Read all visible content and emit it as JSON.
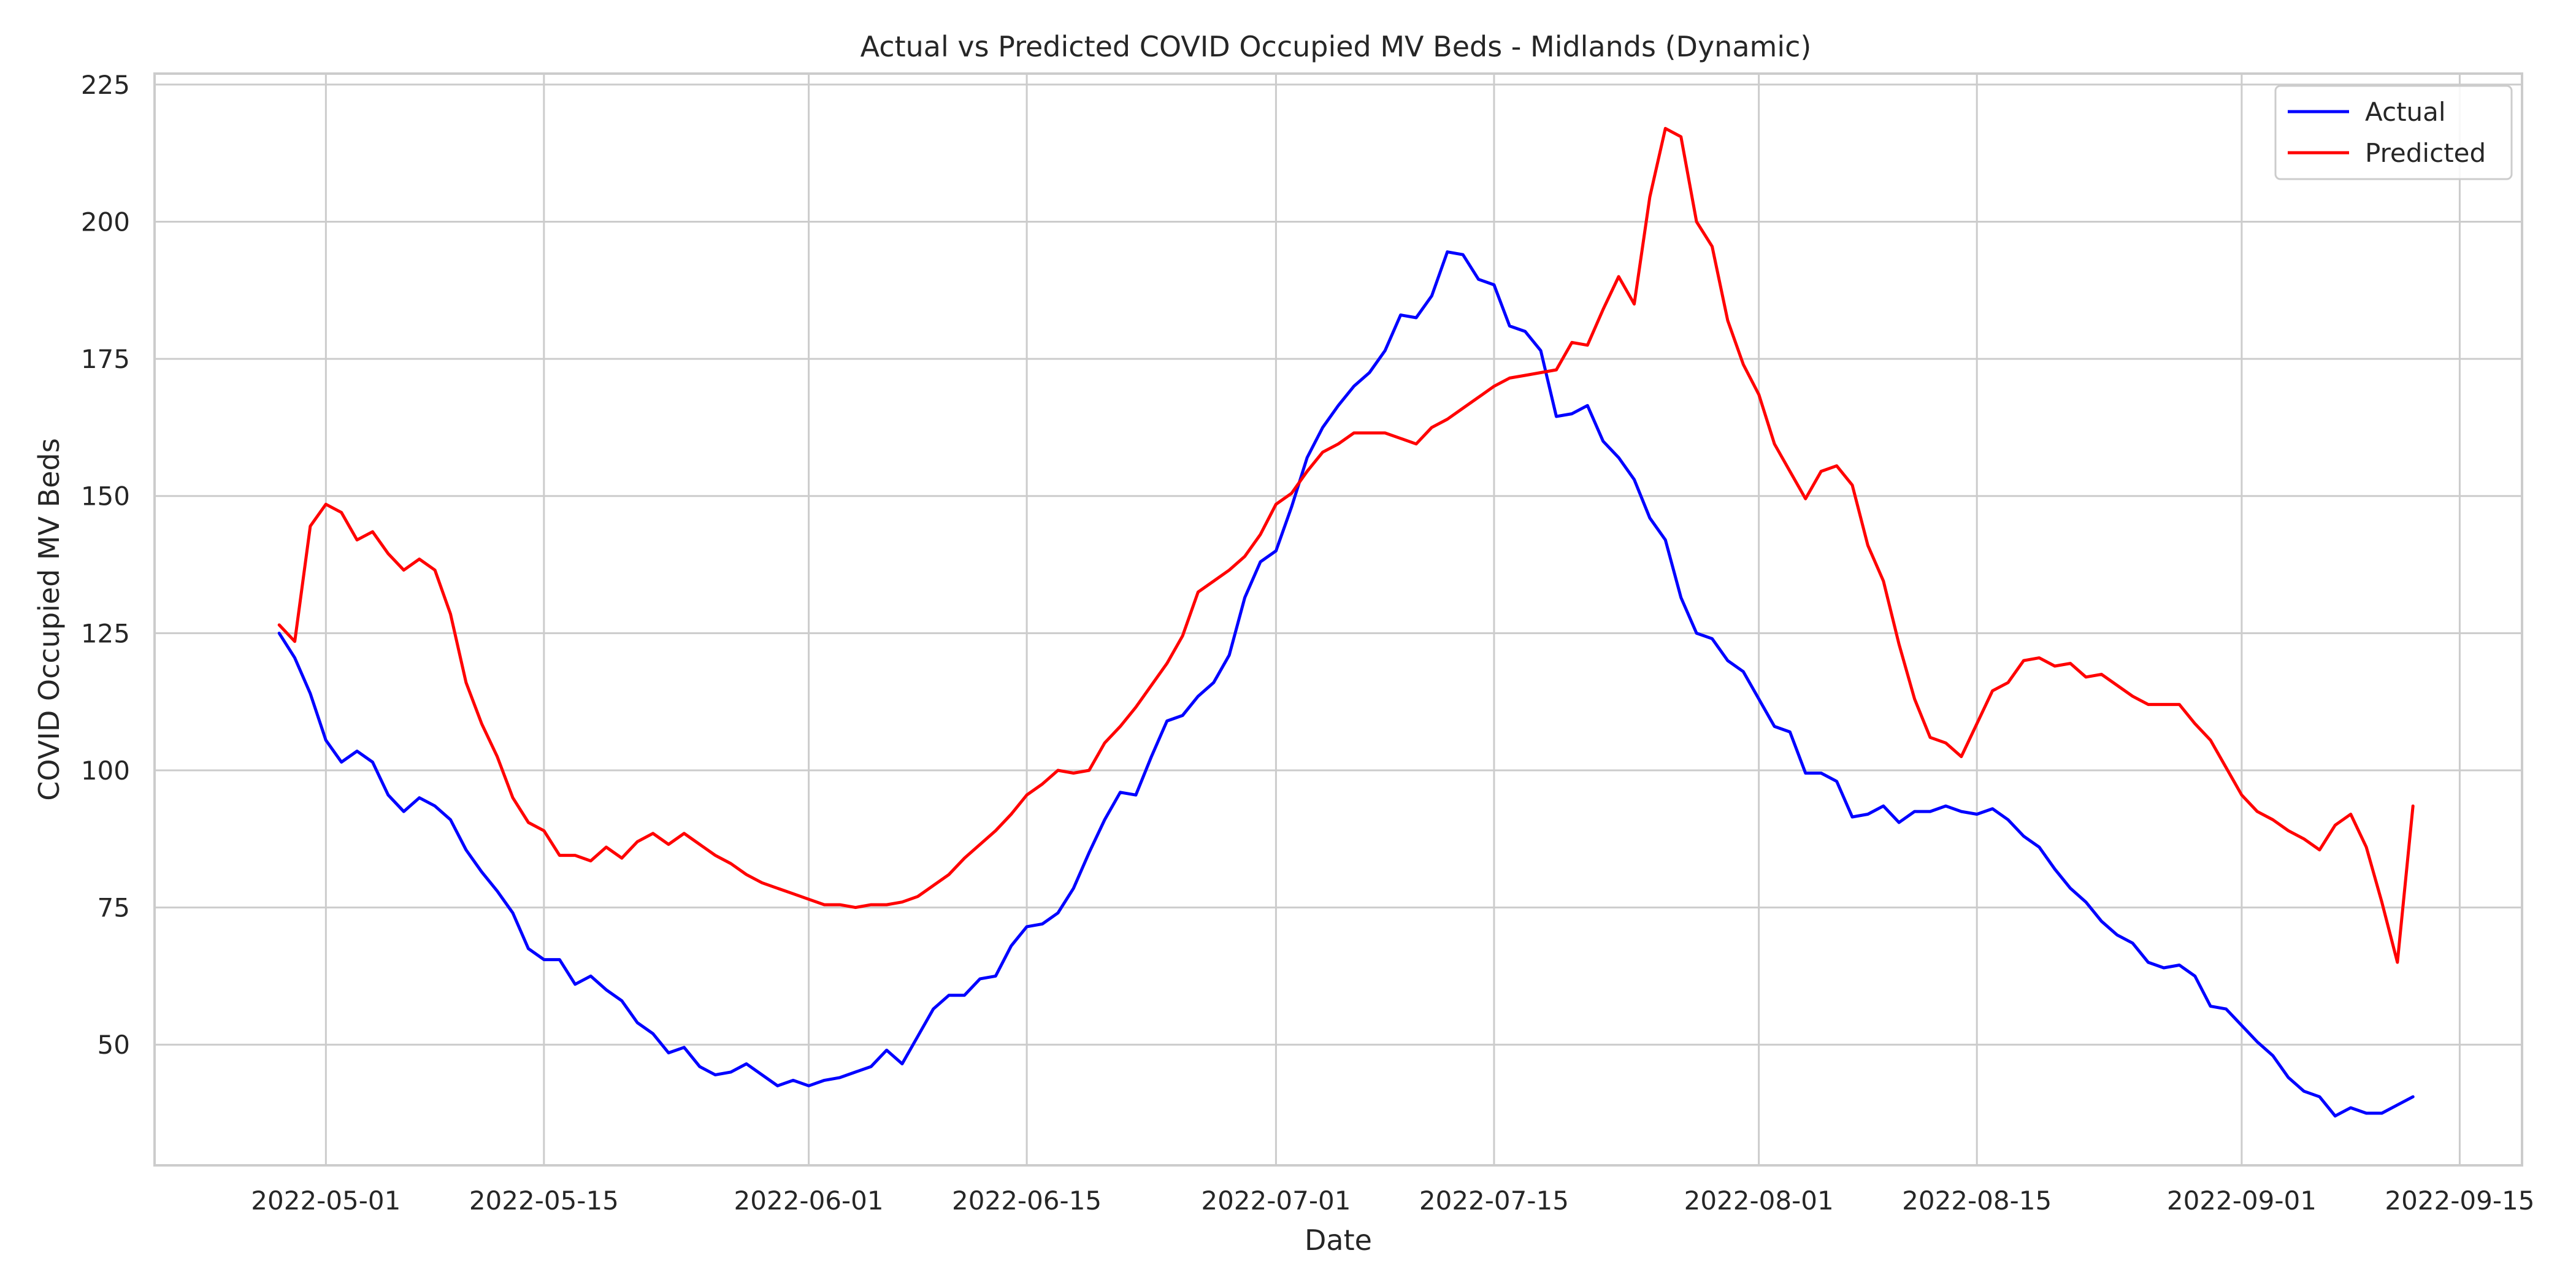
{
  "chart_data": {
    "type": "line",
    "title": "Actual vs Predicted COVID Occupied MV Beds - Midlands (Dynamic)",
    "xlabel": "Date",
    "ylabel": "COVID Occupied MV Beds",
    "xlim": [
      "2022-04-20",
      "2022-09-19"
    ],
    "ylim": [
      28,
      227
    ],
    "x_ticks": [
      "2022-05-01",
      "2022-05-15",
      "2022-06-01",
      "2022-06-15",
      "2022-07-01",
      "2022-07-15",
      "2022-08-01",
      "2022-08-15",
      "2022-09-01",
      "2022-09-15"
    ],
    "y_ticks": [
      50,
      75,
      100,
      125,
      150,
      175,
      200,
      225
    ],
    "grid": true,
    "legend_position": "top-right",
    "x_start": "2022-04-28",
    "x_end": "2022-09-12",
    "series": [
      {
        "name": "Actual",
        "color": "#0000ff",
        "values": [
          125,
          120.5,
          114,
          105.5,
          101.5,
          103.5,
          101.5,
          95.5,
          92.5,
          95,
          93.5,
          91,
          85.5,
          81.5,
          78,
          74,
          67.5,
          65.5,
          65.5,
          61,
          62.5,
          60,
          58,
          54,
          52,
          48.5,
          49.5,
          46,
          44.5,
          45,
          46.5,
          44.5,
          42.5,
          43.5,
          42.5,
          43.5,
          44,
          45,
          46,
          49,
          46.5,
          51.5,
          56.5,
          59,
          59,
          62,
          62.5,
          68,
          71.5,
          72,
          74,
          78.5,
          85,
          91,
          96,
          95.5,
          102.5,
          109,
          110,
          113.5,
          116,
          121,
          131.5,
          138,
          140,
          148,
          157,
          162.5,
          166.5,
          170,
          172.5,
          176.5,
          183,
          182.5,
          186.5,
          194.5,
          194,
          189.5,
          188.5,
          181,
          180,
          176.5,
          164.5,
          165,
          166.5,
          160,
          157,
          153,
          146,
          142,
          131.5,
          125,
          124,
          120,
          118,
          113,
          108,
          107,
          99.5,
          99.5,
          98,
          91.5,
          92,
          93.5,
          90.5,
          92.5,
          92.5,
          93.5,
          92.5,
          92,
          93,
          91,
          88,
          86,
          82,
          78.5,
          76,
          72.5,
          70,
          68.5,
          65,
          64,
          64.5,
          62.5,
          57,
          56.5,
          53.5,
          50.5,
          48,
          44,
          41.5,
          40.5,
          37,
          38.5,
          37.5,
          37.5,
          39,
          40.5
        ]
      },
      {
        "name": "Predicted",
        "color": "#ff0000",
        "values": [
          126.5,
          123.5,
          144.5,
          148.5,
          147,
          142,
          143.5,
          139.5,
          136.5,
          138.5,
          136.5,
          128.5,
          116,
          108.5,
          102.5,
          95,
          90.5,
          89,
          84.5,
          84.5,
          83.5,
          86,
          84,
          87,
          88.5,
          86.5,
          88.5,
          86.5,
          84.5,
          83,
          81,
          79.5,
          78.5,
          77.5,
          76.5,
          75.5,
          75.5,
          75,
          75.5,
          75.5,
          76,
          77,
          79,
          81,
          84,
          86.5,
          89,
          92,
          95.5,
          97.5,
          100,
          99.5,
          100,
          105,
          108,
          111.5,
          115.5,
          119.5,
          124.5,
          132.5,
          134.5,
          136.5,
          139,
          143,
          148.5,
          150.5,
          154.5,
          158,
          159.5,
          161.5,
          161.5,
          161.5,
          160.5,
          159.5,
          162.5,
          164,
          166,
          168,
          170,
          171.5,
          172,
          172.5,
          173,
          178,
          177.5,
          184,
          190,
          185,
          204.5,
          217,
          215.5,
          200,
          195.5,
          182,
          174,
          168.5,
          159.5,
          154.5,
          149.5,
          154.5,
          155.5,
          152,
          141,
          134.5,
          123,
          113,
          106,
          105,
          102.5,
          108.5,
          114.5,
          116,
          120,
          120.5,
          119,
          119.5,
          117,
          117.5,
          115.5,
          113.5,
          112,
          112,
          112,
          108.5,
          105.5,
          100.5,
          95.5,
          92.5,
          91,
          89,
          87.5,
          85.5,
          90,
          92,
          86,
          76,
          65,
          93.5
        ]
      }
    ]
  }
}
